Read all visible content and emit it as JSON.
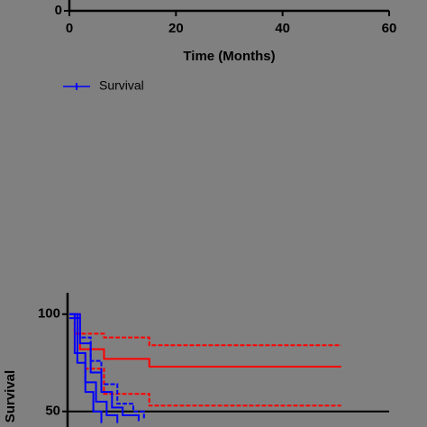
{
  "chart_data": [
    {
      "type": "line",
      "x_label": "Time (Months)",
      "xlim": [
        0,
        60
      ],
      "xticks": [
        0,
        20,
        40,
        60
      ],
      "yticks": [
        0
      ],
      "legend": "bottom-left",
      "series": [
        {
          "name": "Survival",
          "color": "#0000ff"
        }
      ]
    },
    {
      "type": "line",
      "y_label": "Survival",
      "xlim": [
        0,
        60
      ],
      "ylim": [
        42,
        111
      ],
      "yticks": [
        50,
        100
      ],
      "hline": 50,
      "series": [
        {
          "color": "#ff0000",
          "dashed": true,
          "x": [
            0,
            1,
            6.5,
            15,
            51
          ],
          "values": [
            100,
            90,
            88,
            84,
            84
          ]
        },
        {
          "color": "#ff0000",
          "dashed": false,
          "x": [
            0,
            2,
            6.5,
            15,
            51
          ],
          "values": [
            100,
            82,
            77,
            73,
            73
          ]
        },
        {
          "color": "#ff0000",
          "dashed": true,
          "x": [
            0,
            1,
            3,
            6.5,
            15,
            51
          ],
          "values": [
            100,
            80,
            72,
            59,
            53,
            53
          ]
        },
        {
          "color": "#0000ff",
          "dashed": false,
          "x": [
            0,
            2,
            4,
            6,
            8,
            10,
            13
          ],
          "values": [
            100,
            85,
            70,
            60,
            52,
            48,
            45
          ]
        },
        {
          "color": "#0000ff",
          "dashed": false,
          "x": [
            0,
            1,
            3,
            5,
            7,
            9
          ],
          "values": [
            100,
            80,
            65,
            55,
            48,
            44
          ]
        },
        {
          "color": "#0000ff",
          "dashed": true,
          "x": [
            0,
            2,
            4,
            6,
            9,
            12,
            14
          ],
          "values": [
            98,
            88,
            76,
            64,
            54,
            50,
            46
          ]
        },
        {
          "color": "#0000ff",
          "dashed": false,
          "x": [
            0,
            1.5,
            3,
            4.5,
            6
          ],
          "values": [
            100,
            75,
            60,
            50,
            44
          ]
        }
      ]
    }
  ]
}
